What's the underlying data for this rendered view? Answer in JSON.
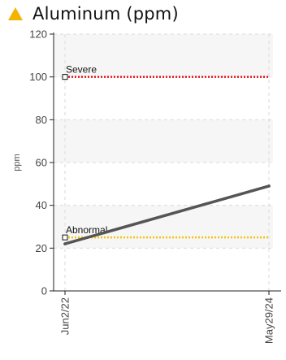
{
  "header": {
    "title": "Aluminum (ppm)",
    "status_icon": "warning-triangle-icon",
    "status_color": "#f2b400"
  },
  "chart_data": {
    "type": "line",
    "title": "Aluminum (ppm)",
    "xlabel": "",
    "ylabel": "ppm",
    "ylim": [
      0,
      120
    ],
    "yticks": [
      0,
      20,
      40,
      60,
      80,
      100,
      120
    ],
    "x": [
      "Jun2/22",
      "May29/24"
    ],
    "grid": true,
    "series": [
      {
        "values": [
          22,
          49
        ],
        "color": "#555555"
      }
    ],
    "limits": [
      {
        "label": "Severe",
        "value": 100,
        "color": "#e8101a"
      },
      {
        "label": "Abnormal",
        "value": 25,
        "color": "#f2c40c"
      }
    ]
  }
}
